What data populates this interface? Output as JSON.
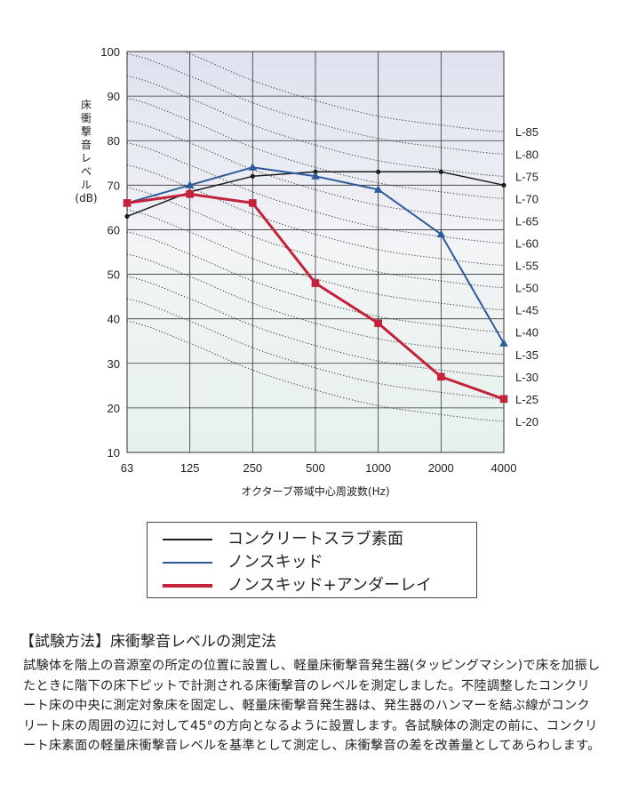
{
  "chart_data": {
    "type": "line",
    "x_scale": "log",
    "categories": [
      "63",
      "125",
      "250",
      "500",
      "1000",
      "2000",
      "4000"
    ],
    "x": [
      63,
      125,
      250,
      500,
      1000,
      2000,
      4000
    ],
    "ylim": [
      10,
      100
    ],
    "yticks": [
      "10",
      "20",
      "30",
      "40",
      "50",
      "60",
      "70",
      "80",
      "90",
      "100"
    ],
    "ylabel_lines": [
      "床",
      "衝",
      "撃",
      "音",
      "レ",
      "ベ",
      "ル",
      "(dB)"
    ],
    "xlabel": "オクターブ帯域中心周波数(Hz)",
    "grid": true,
    "series": [
      {
        "name": "コンクリートスラブ素面",
        "color": "#1a1a1a",
        "marker": "circle",
        "values": [
          63,
          68.5,
          72,
          73,
          73,
          73,
          70
        ]
      },
      {
        "name": "ノンスキッド",
        "color": "#2e5a9c",
        "marker": "triangle",
        "values": [
          66,
          70,
          74,
          72,
          69,
          59,
          34.5
        ]
      },
      {
        "name": "ノンスキッド+アンダーレイ",
        "color": "#c4223a",
        "marker": "square",
        "values": [
          66,
          68,
          66,
          48,
          39,
          27,
          22
        ]
      }
    ],
    "l_curves": {
      "labels": [
        "L-85",
        "L-80",
        "L-75",
        "L-70",
        "L-65",
        "L-60",
        "L-55",
        "L-50",
        "L-45",
        "L-40",
        "L-35",
        "L-30",
        "L-25",
        "L-20"
      ],
      "values_at_4000": [
        82,
        77,
        72,
        67,
        62,
        57,
        52,
        47,
        42,
        37,
        32,
        27,
        22,
        17
      ]
    }
  },
  "legend": {
    "items": [
      {
        "label": "コンクリートスラブ素面",
        "color": "#1a1a1a"
      },
      {
        "label": "ノンスキッド",
        "color": "#2e5a9c"
      },
      {
        "label": "ノンスキッド+アンダーレイ",
        "color": "#c4223a"
      }
    ]
  },
  "method": {
    "title": "【試験方法】床衝撃音レベルの測定法",
    "body": "試験体を階上の音源室の所定の位置に設置し、軽量床衝撃音発生器(タッピングマシン)で床を加振したときに階下の床下ピットで計測される床衝撃音のレベルを測定しました。不陸調整したコンクリート床の中央に測定対象床を固定し、軽量床衝撃音発生器は、発生器のハンマーを結ぶ線がコンクリート床の周囲の辺に対して45°の方向となるように設置します。各試験体の測定の前に、コンクリート床素面の軽量床衝撃音レベルを基準として測定し、床衝撃音の差を改善量としてあらわします。"
  }
}
